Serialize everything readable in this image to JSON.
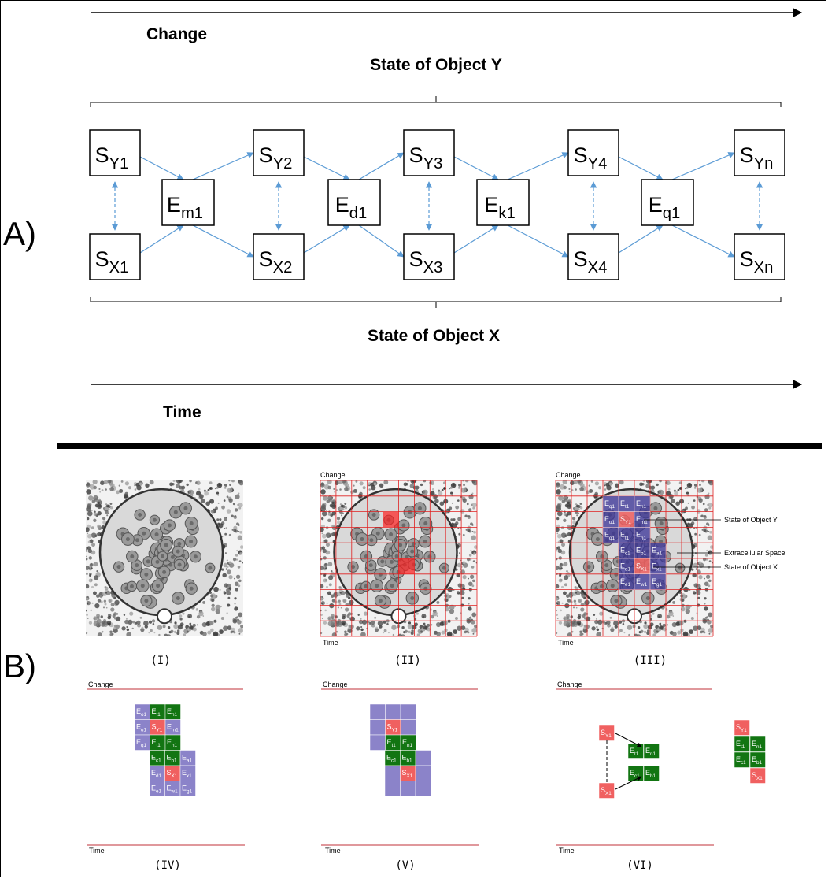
{
  "panel_a": {
    "label": "A)",
    "change_label": "Change",
    "time_label": "Time",
    "object_y_label": "State of Object Y",
    "object_x_label": "State of Object X",
    "top_row": [
      {
        "base": "S",
        "sub": "Y1"
      },
      {
        "base": "S",
        "sub": "Y2"
      },
      {
        "base": "S",
        "sub": "Y3"
      },
      {
        "base": "S",
        "sub": "Y4"
      },
      {
        "base": "S",
        "sub": "Yn"
      }
    ],
    "bottom_row": [
      {
        "base": "S",
        "sub": "X1"
      },
      {
        "base": "S",
        "sub": "X2"
      },
      {
        "base": "S",
        "sub": "X3"
      },
      {
        "base": "S",
        "sub": "X4"
      },
      {
        "base": "S",
        "sub": "Xn"
      }
    ],
    "events": [
      {
        "base": "E",
        "sub": "m1"
      },
      {
        "base": "E",
        "sub": "d1"
      },
      {
        "base": "E",
        "sub": "k1"
      },
      {
        "base": "E",
        "sub": "q1"
      }
    ],
    "arrow_color": "#5b9bd5"
  },
  "panel_b": {
    "label": "B)",
    "captions": [
      "(I)",
      "(II)",
      "(III)",
      "(IV)",
      "(V)",
      "(VI)"
    ],
    "change_label": "Change",
    "time_label": "Time",
    "annotations": [
      "State of Object Y",
      "Extracellular Space",
      "State of Object X"
    ],
    "grid_labels": [
      [
        "Eo1",
        "Et1",
        "En1"
      ],
      [
        "Eu1",
        "SY1",
        "Em1"
      ],
      [
        "Eq1",
        "Et1",
        "En1"
      ],
      [
        "Ec1",
        "Eb1",
        "Ea1"
      ],
      [
        "Ed1",
        "SX1",
        "Ex1"
      ],
      [
        "Ee1",
        "Ew1",
        "Eg1"
      ]
    ],
    "grid_labels_iii": [
      [
        "Eq1",
        "Et1",
        "En1"
      ],
      [
        "Eu1",
        "SY1",
        "Em1"
      ],
      [
        "Eq1",
        "Et1",
        "En1"
      ],
      [
        "Ec1",
        "Eb1",
        "Ea1"
      ],
      [
        "Ed1",
        "SX1",
        "Ex1"
      ],
      [
        "Ee1",
        "Ew1",
        "Eg1"
      ]
    ],
    "colors": {
      "purple": "#8b83c9",
      "red": "#f06060",
      "green": "#127512",
      "red_line": "#c0303a",
      "dark_purple": "#3a3398"
    }
  }
}
